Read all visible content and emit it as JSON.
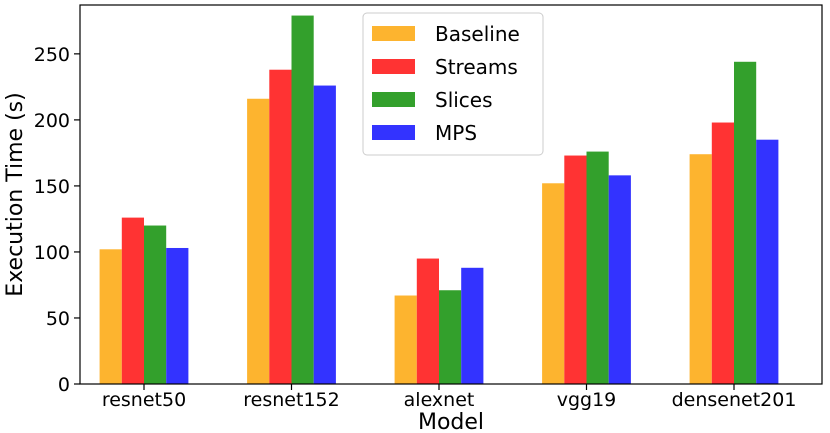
{
  "chart_data": {
    "type": "bar",
    "title": "",
    "xlabel": "Model",
    "ylabel": "Execution Time (s)",
    "categories": [
      "resnet50",
      "resnet152",
      "alexnet",
      "vgg19",
      "densenet201"
    ],
    "series": [
      {
        "name": "Baseline",
        "color": "#fdb42f",
        "values": [
          102,
          216,
          67,
          152,
          174
        ]
      },
      {
        "name": "Streams",
        "color": "#ff3333",
        "values": [
          126,
          238,
          95,
          173,
          198
        ]
      },
      {
        "name": "Slices",
        "color": "#33a02c",
        "values": [
          120,
          279,
          71,
          176,
          244
        ]
      },
      {
        "name": "MPS",
        "color": "#3333ff",
        "values": [
          103,
          226,
          88,
          158,
          185
        ]
      }
    ],
    "ylim": [
      0,
      287
    ],
    "yticks": [
      0,
      50,
      100,
      150,
      200,
      250
    ],
    "legend_position": "top-center",
    "grid": false
  }
}
